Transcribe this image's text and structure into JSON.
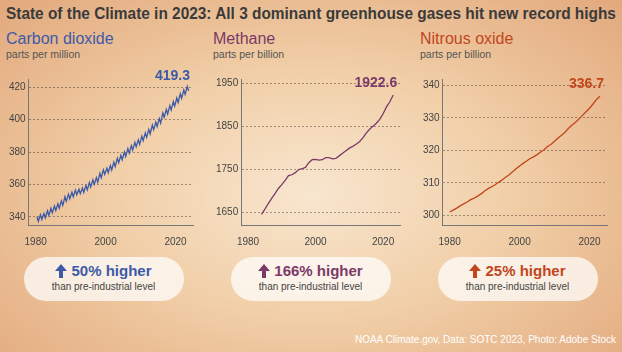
{
  "title": "State of the Climate in 2023: All 3 dominant greenhouse gases hit new record highs",
  "source": "NOAA Climate.gov, Data: SOTC 2023, Photo: Adobe Stock",
  "chart_data": [
    {
      "type": "line",
      "title": "Carbon dioxide",
      "subtitle": "parts per million",
      "color": "#3d5aa8",
      "x": [
        1980.37,
        1980.75,
        1981.37,
        1981.75,
        1982.37,
        1982.75,
        1983.37,
        1983.75,
        1984.37,
        1984.75,
        1985.37,
        1985.75,
        1986.37,
        1986.75,
        1987.37,
        1987.75,
        1988.37,
        1988.75,
        1989.37,
        1989.75,
        1990.37,
        1990.75,
        1991.37,
        1991.75,
        1992.37,
        1992.75,
        1993.37,
        1993.75,
        1994.37,
        1994.75,
        1995.37,
        1995.75,
        1996.37,
        1996.75,
        1997.37,
        1997.75,
        1998.37,
        1998.75,
        1999.37,
        1999.75,
        2000.37,
        2000.75,
        2001.37,
        2001.75,
        2002.37,
        2002.75,
        2003.37,
        2003.75,
        2004.37,
        2004.75,
        2005.37,
        2005.75,
        2006.37,
        2006.75,
        2007.37,
        2007.75,
        2008.37,
        2008.75,
        2009.37,
        2009.75,
        2010.37,
        2010.75,
        2011.37,
        2011.75,
        2012.37,
        2012.75,
        2013.37,
        2013.75,
        2014.37,
        2014.75,
        2015.37,
        2015.75,
        2016.37,
        2016.75,
        2017.37,
        2017.75,
        2018.37,
        2018.75,
        2019.37,
        2019.75,
        2020.37,
        2020.75,
        2021.37,
        2021.75,
        2022.37,
        2022.75,
        2023.37,
        2023.75
      ],
      "values": [
        340.1,
        337.3,
        341.3,
        338.5,
        342.1,
        339.3,
        343.7,
        340.9,
        345.3,
        342.5,
        346.7,
        343.9,
        348.1,
        345.3,
        349.9,
        347.1,
        352.4,
        349.6,
        354.0,
        351.2,
        355.2,
        352.4,
        356.5,
        353.7,
        357.1,
        354.3,
        357.8,
        355.0,
        359.4,
        356.6,
        361.2,
        358.4,
        362.9,
        360.1,
        364.2,
        361.4,
        366.9,
        364.1,
        369.0,
        366.2,
        370.1,
        367.3,
        371.7,
        368.9,
        373.8,
        371.0,
        376.2,
        373.4,
        378.0,
        375.2,
        380.0,
        377.2,
        382.1,
        379.3,
        383.9,
        381.1,
        386.0,
        383.2,
        387.5,
        384.7,
        389.8,
        387.0,
        391.8,
        389.0,
        393.9,
        391.1,
        396.6,
        393.8,
        398.5,
        395.7,
        400.6,
        397.8,
        404.1,
        401.3,
        406.2,
        403.4,
        408.6,
        405.8,
        411.1,
        408.3,
        413.3,
        410.5,
        415.9,
        413.1,
        418.3,
        415.5,
        420.5,
        417.7
      ],
      "xlim": [
        1978,
        2025
      ],
      "xticks": [
        1980,
        2000,
        2020
      ],
      "ylim": [
        335,
        425
      ],
      "yticks": [
        340,
        360,
        380,
        400,
        420
      ],
      "grid": true,
      "annotations": [
        {
          "text": "419.3",
          "x": 2023,
          "y": 419.3
        }
      ],
      "callout": "50% higher",
      "callout_note": "than pre-industrial level"
    },
    {
      "type": "line",
      "title": "Methane",
      "subtitle": "parts per billion",
      "color": "#7b3a68",
      "x": [
        1984,
        1985,
        1986,
        1987,
        1988,
        1989,
        1990,
        1991,
        1992,
        1993,
        1994,
        1995,
        1996,
        1997,
        1998,
        1999,
        2000,
        2001,
        2002,
        2003,
        2004,
        2005,
        2006,
        2007,
        2008,
        2009,
        2010,
        2011,
        2012,
        2013,
        2014,
        2015,
        2016,
        2017,
        2018,
        2019,
        2020,
        2021,
        2022,
        2023
      ],
      "values": [
        1644.8,
        1657,
        1670,
        1682,
        1693,
        1705,
        1714,
        1724,
        1735,
        1737,
        1742,
        1749,
        1751,
        1754,
        1765,
        1772,
        1773,
        1771,
        1772,
        1777,
        1777,
        1774,
        1775,
        1781,
        1787,
        1793,
        1799,
        1803,
        1808,
        1814,
        1823,
        1834,
        1843,
        1850,
        1857,
        1866,
        1879,
        1895,
        1907,
        1922.6
      ],
      "xlim": [
        1978,
        2025
      ],
      "xticks": [
        1980,
        2000,
        2020
      ],
      "ylim": [
        1620,
        1960
      ],
      "yticks": [
        1650,
        1750,
        1850,
        1950
      ],
      "grid": true,
      "annotations": [
        {
          "text": "1922.6",
          "x": 2023,
          "y": 1922.6
        }
      ],
      "callout": "166% higher",
      "callout_note": "than pre-industrial level"
    },
    {
      "type": "line",
      "title": "Nitrous oxide",
      "subtitle": "parts per billion",
      "color": "#c2461d",
      "x": [
        1980,
        1981,
        1982,
        1983,
        1984,
        1985,
        1986,
        1987,
        1988,
        1989,
        1990,
        1991,
        1992,
        1993,
        1994,
        1995,
        1996,
        1997,
        1998,
        1999,
        2000,
        2001,
        2002,
        2003,
        2004,
        2005,
        2006,
        2007,
        2008,
        2009,
        2010,
        2011,
        2012,
        2013,
        2014,
        2015,
        2016,
        2017,
        2018,
        2019,
        2020,
        2021,
        2022,
        2023
      ],
      "values": [
        301.0,
        301.6,
        302.2,
        302.9,
        303.5,
        304.1,
        304.8,
        305.3,
        305.9,
        306.6,
        307.5,
        308.2,
        308.8,
        309.4,
        310.2,
        310.9,
        311.7,
        312.5,
        313.4,
        314.3,
        315.2,
        316.0,
        316.7,
        317.5,
        318.0,
        318.7,
        319.5,
        320.2,
        321.2,
        321.9,
        322.8,
        323.8,
        324.7,
        325.6,
        326.8,
        327.8,
        328.7,
        329.7,
        330.8,
        331.9,
        333.0,
        334.3,
        335.7,
        336.7
      ],
      "xlim": [
        1978,
        2025
      ],
      "xticks": [
        1980,
        2000,
        2020
      ],
      "ylim": [
        297,
        342
      ],
      "yticks": [
        300,
        310,
        320,
        330,
        340
      ],
      "grid": true,
      "annotations": [
        {
          "text": "336.7",
          "x": 2023,
          "y": 336.7
        }
      ],
      "callout": "25% higher",
      "callout_note": "than pre-industrial level"
    }
  ]
}
